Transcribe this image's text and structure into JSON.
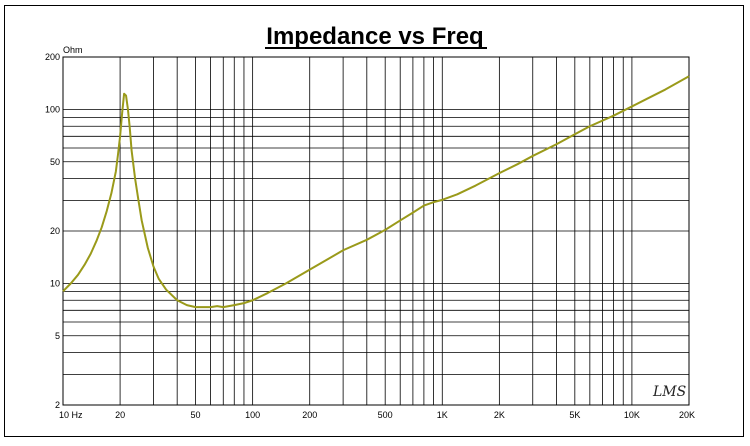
{
  "chart_data": {
    "type": "line",
    "title": "Impedance vs Freq",
    "ylabel_unit": "Ohm",
    "x_scale": "log",
    "y_scale": "log",
    "xlim": [
      10,
      20000
    ],
    "ylim": [
      2,
      200
    ],
    "grid": true,
    "x_ticks": [
      {
        "value": 10,
        "label": "10  Hz"
      },
      {
        "value": 20,
        "label": "20"
      },
      {
        "value": 50,
        "label": "50"
      },
      {
        "value": 100,
        "label": "100"
      },
      {
        "value": 200,
        "label": "200"
      },
      {
        "value": 500,
        "label": "500"
      },
      {
        "value": 1000,
        "label": "1K"
      },
      {
        "value": 2000,
        "label": "2K"
      },
      {
        "value": 5000,
        "label": "5K"
      },
      {
        "value": 10000,
        "label": "10K"
      },
      {
        "value": 20000,
        "label": "20K"
      }
    ],
    "y_ticks": [
      {
        "value": 2,
        "label": "2"
      },
      {
        "value": 5,
        "label": "5"
      },
      {
        "value": 10,
        "label": "10"
      },
      {
        "value": 20,
        "label": "20"
      },
      {
        "value": 50,
        "label": "50"
      },
      {
        "value": 100,
        "label": "100"
      },
      {
        "value": 200,
        "label": "200"
      }
    ],
    "series": [
      {
        "color": "#9a9a1a",
        "x": [
          10,
          11,
          12,
          13,
          14,
          15,
          16,
          17,
          18,
          19,
          19.5,
          20,
          20.5,
          21,
          21.5,
          22,
          22.5,
          23,
          24,
          25,
          26,
          28,
          30,
          32,
          35,
          40,
          45,
          50,
          55,
          60,
          65,
          70,
          80,
          90,
          100,
          120,
          150,
          200,
          250,
          300,
          400,
          500,
          600,
          700,
          800,
          900,
          1000,
          1200,
          1500,
          2000,
          2500,
          3000,
          4000,
          5000,
          6000,
          8000,
          10000,
          12000,
          15000,
          20000
        ],
        "y": [
          9.0,
          10.0,
          11.2,
          12.8,
          14.8,
          17.5,
          21,
          26,
          33,
          44,
          55,
          70,
          95,
          123,
          120,
          100,
          78,
          58,
          40,
          30,
          23,
          16,
          12.5,
          10.6,
          9.2,
          8.0,
          7.5,
          7.3,
          7.3,
          7.3,
          7.4,
          7.3,
          7.5,
          7.7,
          8.0,
          8.8,
          10.0,
          12.0,
          13.8,
          15.5,
          17.8,
          20.3,
          23,
          25.5,
          28,
          29.3,
          30.2,
          32.5,
          36.5,
          43,
          48.5,
          54,
          63,
          72,
          80,
          92,
          104,
          115,
          130,
          155
        ]
      }
    ]
  },
  "watermark": "LMS"
}
